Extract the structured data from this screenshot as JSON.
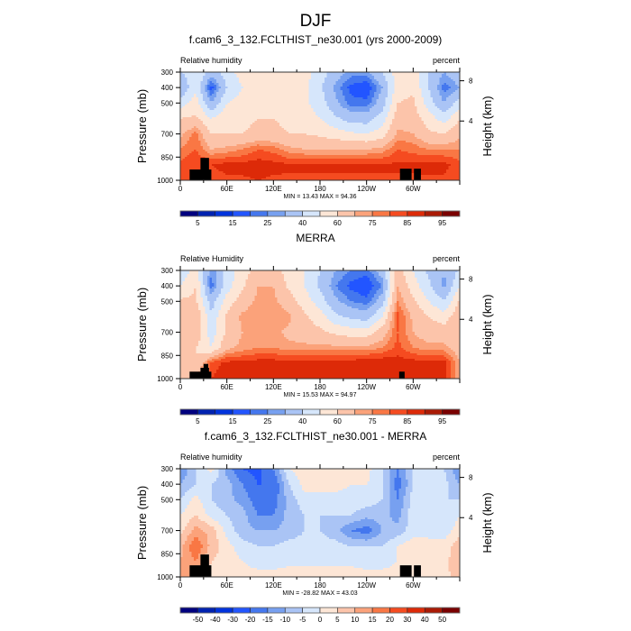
{
  "title": "DJF",
  "chart_data": [
    {
      "type": "heatmap",
      "title": "f.cam6_3_132.FCLTHIST_ne30.001 (yrs 2000-2009)",
      "left_label": "Relative humidity",
      "right_label": "percent",
      "min_max_text": "MIN = 13.43  MAX = 94.36",
      "ylabel": "Pressure (mb)",
      "ylabel_right": "Height (km)",
      "x_ticks": [
        {
          "lon": 0,
          "label": "0"
        },
        {
          "lon": 60,
          "label": "60E"
        },
        {
          "lon": 120,
          "label": "120E"
        },
        {
          "lon": 180,
          "label": "180"
        },
        {
          "lon": 240,
          "label": "120W"
        },
        {
          "lon": 300,
          "label": "60W"
        }
      ],
      "y_ticks": [
        {
          "p": 300,
          "label": "300"
        },
        {
          "p": 400,
          "label": "400"
        },
        {
          "p": 500,
          "label": "500"
        },
        {
          "p": 700,
          "label": "700"
        },
        {
          "p": 850,
          "label": "850"
        },
        {
          "p": 1000,
          "label": "1000"
        }
      ],
      "right_ticks": [
        {
          "km": 8,
          "label": "8"
        },
        {
          "km": 4,
          "label": "4"
        }
      ],
      "xlim": [
        0,
        360
      ],
      "ylim": [
        300,
        1000
      ],
      "lons": [
        0,
        20,
        40,
        60,
        80,
        100,
        120,
        140,
        160,
        180,
        200,
        220,
        240,
        260,
        280,
        300,
        320,
        340,
        360
      ],
      "levels": [
        300,
        400,
        500,
        600,
        700,
        800,
        900,
        1000
      ],
      "values": [
        [
          38,
          50,
          35,
          45,
          55,
          55,
          50,
          55,
          55,
          45,
          35,
          28,
          28,
          40,
          55,
          58,
          40,
          30,
          38
        ],
        [
          30,
          48,
          17,
          40,
          50,
          52,
          50,
          52,
          52,
          42,
          28,
          18,
          15,
          30,
          55,
          58,
          40,
          22,
          30
        ],
        [
          45,
          55,
          30,
          50,
          55,
          55,
          55,
          55,
          52,
          45,
          32,
          22,
          22,
          35,
          60,
          62,
          45,
          30,
          45
        ],
        [
          60,
          62,
          50,
          58,
          58,
          60,
          60,
          58,
          55,
          50,
          42,
          35,
          35,
          45,
          65,
          65,
          55,
          45,
          60
        ],
        [
          68,
          77,
          60,
          60,
          60,
          62,
          62,
          60,
          60,
          58,
          55,
          52,
          50,
          55,
          72,
          70,
          62,
          60,
          68
        ],
        [
          75,
          80,
          70,
          72,
          75,
          80,
          78,
          72,
          70,
          70,
          70,
          70,
          70,
          72,
          80,
          78,
          75,
          75,
          75
        ],
        [
          82,
          85,
          85,
          87,
          87,
          88,
          87,
          86,
          86,
          86,
          86,
          86,
          86,
          86,
          86,
          86,
          87,
          87,
          82
        ],
        [
          80,
          82,
          82,
          84,
          84,
          85,
          84,
          84,
          84,
          84,
          84,
          84,
          84,
          84,
          84,
          84,
          84,
          84,
          80
        ]
      ],
      "terrain": [
        [
          12,
          40,
          930
        ],
        [
          26,
          37,
          855
        ],
        [
          283,
          298,
          925
        ],
        [
          301,
          310,
          925
        ]
      ],
      "colorbar": {
        "levels": [
          5,
          10,
          15,
          20,
          25,
          30,
          40,
          50,
          60,
          70,
          75,
          80,
          85,
          90,
          95
        ],
        "tick_labels": [
          "5",
          "15",
          "25",
          "40",
          "60",
          "75",
          "85",
          "95"
        ]
      }
    },
    {
      "type": "heatmap",
      "title": "MERRA",
      "left_label": "Relative Humidity",
      "right_label": "percent",
      "min_max_text": "MIN = 15.53  MAX = 94.97",
      "ylabel": "Pressure (mb)",
      "ylabel_right": "Height (km)",
      "x_ticks": [
        {
          "lon": 0,
          "label": "0"
        },
        {
          "lon": 60,
          "label": "60E"
        },
        {
          "lon": 120,
          "label": "120E"
        },
        {
          "lon": 180,
          "label": "180"
        },
        {
          "lon": 240,
          "label": "120W"
        },
        {
          "lon": 300,
          "label": "60W"
        }
      ],
      "y_ticks": [
        {
          "p": 300,
          "label": "300"
        },
        {
          "p": 400,
          "label": "400"
        },
        {
          "p": 500,
          "label": "500"
        },
        {
          "p": 700,
          "label": "700"
        },
        {
          "p": 850,
          "label": "850"
        },
        {
          "p": 1000,
          "label": "1000"
        }
      ],
      "right_ticks": [
        {
          "km": 8,
          "label": "8"
        },
        {
          "km": 4,
          "label": "4"
        }
      ],
      "xlim": [
        0,
        360
      ],
      "ylim": [
        300,
        1000
      ],
      "lons": [
        0,
        20,
        40,
        60,
        80,
        100,
        120,
        140,
        160,
        180,
        200,
        220,
        240,
        260,
        280,
        300,
        320,
        340,
        360
      ],
      "levels": [
        300,
        400,
        500,
        600,
        700,
        800,
        900,
        1000
      ],
      "values": [
        [
          42,
          55,
          25,
          45,
          55,
          65,
          65,
          55,
          50,
          40,
          30,
          25,
          22,
          35,
          65,
          50,
          38,
          30,
          42
        ],
        [
          50,
          60,
          22,
          45,
          58,
          70,
          70,
          58,
          50,
          38,
          25,
          18,
          15,
          25,
          70,
          55,
          42,
          28,
          50
        ],
        [
          62,
          62,
          35,
          55,
          65,
          72,
          72,
          65,
          55,
          45,
          32,
          25,
          22,
          35,
          75,
          62,
          50,
          40,
          62
        ],
        [
          68,
          70,
          42,
          62,
          72,
          75,
          75,
          72,
          62,
          55,
          42,
          38,
          35,
          50,
          82,
          68,
          60,
          55,
          68
        ],
        [
          68,
          68,
          45,
          62,
          70,
          72,
          72,
          68,
          65,
          62,
          58,
          55,
          55,
          65,
          80,
          70,
          65,
          65,
          68
        ],
        [
          65,
          60,
          50,
          68,
          72,
          75,
          75,
          72,
          72,
          72,
          72,
          72,
          72,
          75,
          82,
          75,
          72,
          72,
          65
        ],
        [
          70,
          60,
          82,
          87,
          87,
          88,
          88,
          88,
          88,
          88,
          88,
          88,
          90,
          90,
          88,
          88,
          88,
          88,
          70
        ],
        [
          70,
          70,
          85,
          88,
          88,
          88,
          88,
          88,
          88,
          88,
          88,
          88,
          88,
          88,
          88,
          88,
          88,
          88,
          70
        ]
      ],
      "terrain": [
        [
          12,
          40,
          955
        ],
        [
          26,
          37,
          930
        ],
        [
          30,
          36,
          905
        ],
        [
          282,
          289,
          955
        ]
      ],
      "colorbar": {
        "levels": [
          5,
          10,
          15,
          20,
          25,
          30,
          40,
          50,
          60,
          70,
          75,
          80,
          85,
          90,
          95
        ],
        "tick_labels": [
          "5",
          "15",
          "25",
          "40",
          "60",
          "75",
          "85",
          "95"
        ]
      }
    },
    {
      "type": "heatmap",
      "title": "f.cam6_3_132.FCLTHIST_ne30.001 - MERRA",
      "left_label": "Relative humidity",
      "right_label": "percent",
      "min_max_text": "MIN = -28.82  MAX = 43.03",
      "ylabel": "Pressure (mb)",
      "ylabel_right": "Height (km)",
      "x_ticks": [
        {
          "lon": 0,
          "label": "0"
        },
        {
          "lon": 60,
          "label": "60E"
        },
        {
          "lon": 120,
          "label": "120E"
        },
        {
          "lon": 180,
          "label": "180"
        },
        {
          "lon": 240,
          "label": "120W"
        },
        {
          "lon": 300,
          "label": "60W"
        }
      ],
      "y_ticks": [
        {
          "p": 300,
          "label": "300"
        },
        {
          "p": 400,
          "label": "400"
        },
        {
          "p": 500,
          "label": "500"
        },
        {
          "p": 700,
          "label": "700"
        },
        {
          "p": 850,
          "label": "850"
        },
        {
          "p": 1000,
          "label": "1000"
        }
      ],
      "right_ticks": [
        {
          "km": 8,
          "label": "8"
        },
        {
          "km": 4,
          "label": "4"
        }
      ],
      "xlim": [
        0,
        360
      ],
      "ylim": [
        300,
        1000
      ],
      "lons": [
        0,
        20,
        40,
        60,
        80,
        100,
        120,
        140,
        160,
        180,
        200,
        220,
        240,
        260,
        280,
        300,
        320,
        340,
        360
      ],
      "levels": [
        300,
        400,
        500,
        600,
        700,
        800,
        900,
        1000
      ],
      "values": [
        [
          -15,
          -5,
          2,
          -12,
          -20,
          -22,
          -15,
          0,
          3,
          3,
          3,
          3,
          2,
          -5,
          -15,
          -5,
          -3,
          -5,
          -15
        ],
        [
          -10,
          -5,
          -5,
          -8,
          -15,
          -20,
          -20,
          -5,
          2,
          2,
          2,
          0,
          0,
          -3,
          -18,
          -5,
          -3,
          -3,
          -10
        ],
        [
          -5,
          2,
          -5,
          -8,
          -12,
          -18,
          -18,
          -8,
          -2,
          -2,
          -2,
          -2,
          -2,
          -5,
          -15,
          -2,
          -3,
          -5,
          -5
        ],
        [
          0,
          5,
          -2,
          -5,
          -8,
          -15,
          -15,
          -8,
          -5,
          -5,
          -5,
          -5,
          -8,
          -8,
          -12,
          -2,
          -2,
          -5,
          0
        ],
        [
          3,
          12,
          8,
          -2,
          -8,
          -10,
          -10,
          -8,
          -5,
          -5,
          -8,
          -15,
          -18,
          -10,
          -8,
          -2,
          -2,
          -3,
          3
        ],
        [
          8,
          20,
          8,
          2,
          -3,
          -5,
          -5,
          -3,
          -3,
          -3,
          -3,
          -5,
          -5,
          -5,
          0,
          3,
          2,
          2,
          8
        ],
        [
          10,
          15,
          5,
          3,
          0,
          -2,
          -2,
          -1,
          -1,
          -1,
          -1,
          -1,
          -2,
          -2,
          0,
          3,
          3,
          3,
          10
        ],
        [
          10,
          10,
          3,
          2,
          2,
          2,
          2,
          2,
          2,
          2,
          2,
          2,
          2,
          2,
          2,
          2,
          2,
          2,
          10
        ]
      ],
      "terrain": [
        [
          12,
          40,
          925
        ],
        [
          26,
          37,
          855
        ],
        [
          283,
          298,
          925
        ],
        [
          301,
          310,
          925
        ]
      ],
      "colorbar": {
        "levels": [
          -50,
          -40,
          -30,
          -20,
          -15,
          -10,
          -5,
          0,
          5,
          10,
          15,
          20,
          30,
          40,
          50
        ],
        "tick_labels": [
          "-50",
          "-40",
          "-30",
          "-20",
          "-15",
          "-10",
          "-5",
          "0",
          "5",
          "10",
          "15",
          "20",
          "30",
          "40",
          "50"
        ]
      }
    }
  ],
  "palette": [
    "#00007f",
    "#0022b0",
    "#0033dd",
    "#2255ff",
    "#4477ee",
    "#77a0f0",
    "#aac4f5",
    "#d6e6fb",
    "#fde6d6",
    "#fcc4aa",
    "#fba27a",
    "#f97744",
    "#f54b20",
    "#dd2a08",
    "#aa1a05",
    "#7a0000"
  ]
}
